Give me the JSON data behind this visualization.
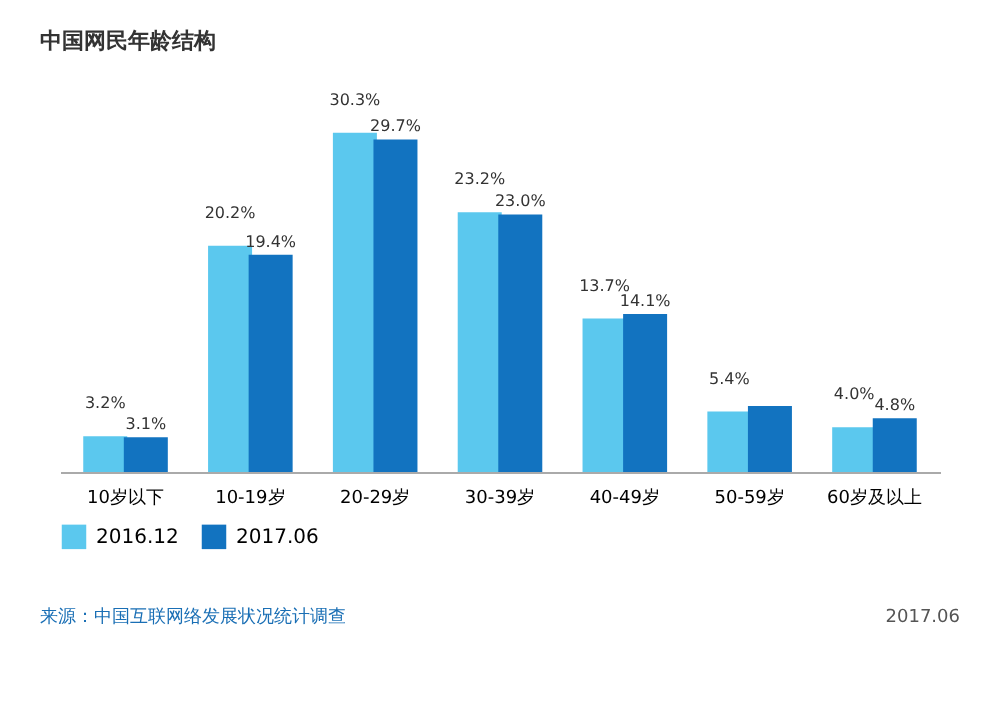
{
  "chart_data": {
    "type": "bar",
    "title": "中国网民年龄结构",
    "categories": [
      "10岁以下",
      "10-19岁",
      "20-29岁",
      "30-39岁",
      "40-49岁",
      "50-59岁",
      "60岁及以上"
    ],
    "series": [
      {
        "name": "2016.12",
        "color": "#5bc8ee",
        "values": [
          3.2,
          20.2,
          30.3,
          23.2,
          13.7,
          5.4,
          4.0
        ],
        "value_labels": [
          "3.2%",
          "20.2%",
          "30.3%",
          "23.2%",
          "13.7%",
          "5.4%",
          "4.0%"
        ]
      },
      {
        "name": "2017.06",
        "color": "#1273c0",
        "values": [
          3.1,
          19.4,
          29.7,
          23.0,
          14.1,
          5.9,
          4.8
        ],
        "value_labels": [
          "3.1%",
          "19.4%",
          "29.7%",
          "23.0%",
          "14.1%",
          null,
          "4.8%"
        ]
      }
    ],
    "legend": "bottom",
    "grid": false,
    "annotations": [
      "来源：中国互联网络发展状况统计调查",
      "2017.06"
    ]
  }
}
